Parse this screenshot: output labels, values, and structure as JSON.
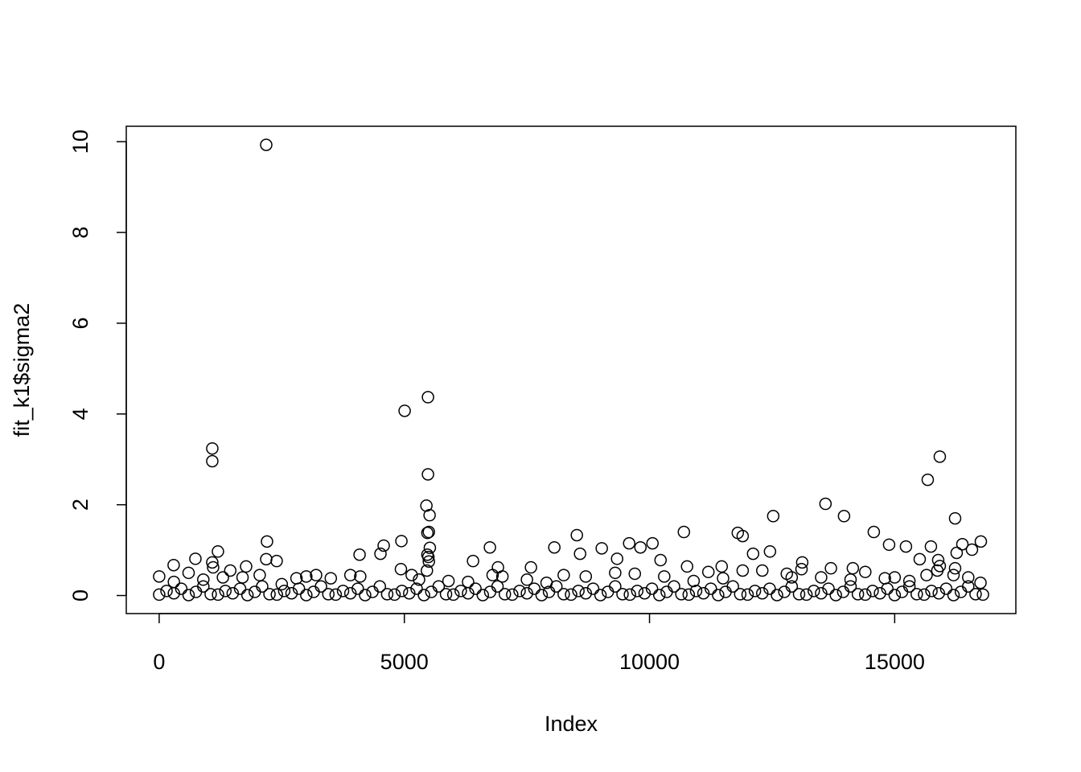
{
  "chart_data": {
    "type": "scatter",
    "xlabel": "Index",
    "ylabel": "fit_k1$sigma2",
    "xlim": [
      -671,
      17471
    ],
    "ylim": [
      -0.398,
      10.34
    ],
    "xticks": [
      0,
      5000,
      10000,
      15000
    ],
    "yticks": [
      0,
      2,
      4,
      6,
      8,
      10
    ],
    "grid": false,
    "color": "#000000",
    "x": [
      2183,
      1083,
      1083,
      5006,
      5482,
      5482,
      5450,
      5515,
      5500,
      5470,
      15920,
      15674,
      13589,
      13967,
      12523,
      16232,
      10701,
      11800,
      11900,
      14574,
      2199,
      4940,
      4579,
      8518,
      8059,
      9585,
      10061,
      9815,
      16757,
      16380,
      14886,
      15230,
      15739,
      1198,
      12457,
      12112,
      6745,
      9026,
      4087,
      4513,
      8584,
      9339,
      10225,
      739,
      2396,
      1083,
      6401,
      13114,
      15510,
      15887,
      16576,
      16264,
      295,
      1773,
      6909,
      7582,
      10766,
      11472,
      14147,
      5490,
      5470,
      5520,
      5500,
      5460,
      4930,
      2183,
      1100,
      16232,
      15920,
      0,
      600,
      1450,
      2050,
      2800,
      3000,
      3200,
      3500,
      3900,
      4100,
      5150,
      5300,
      5900,
      6300,
      6800,
      7000,
      7500,
      7900,
      8250,
      8700,
      9300,
      9700,
      10300,
      10900,
      11200,
      11500,
      11900,
      12300,
      12800,
      12900,
      13100,
      13500,
      13700,
      14100,
      14400,
      14800,
      15000,
      15300,
      15650,
      15870,
      16200,
      16500,
      16750,
      300,
      900,
      1300,
      1700,
      2500,
      0,
      150,
      300,
      450,
      600,
      750,
      900,
      1050,
      1200,
      1350,
      1500,
      1650,
      1800,
      1950,
      2100,
      2250,
      2400,
      2550,
      2700,
      2850,
      3000,
      3150,
      3300,
      3450,
      3600,
      3750,
      3900,
      4050,
      4200,
      4350,
      4500,
      4650,
      4800,
      4950,
      5100,
      5250,
      5400,
      5550,
      5700,
      5850,
      6000,
      6150,
      6300,
      6450,
      6600,
      6750,
      6900,
      7050,
      7200,
      7350,
      7500,
      7650,
      7800,
      7950,
      8100,
      8250,
      8400,
      8550,
      8700,
      8850,
      9000,
      9150,
      9300,
      9450,
      9600,
      9750,
      9900,
      10050,
      10200,
      10350,
      10500,
      10650,
      10800,
      10950,
      11100,
      11250,
      11400,
      11550,
      11700,
      11850,
      12000,
      12150,
      12300,
      12450,
      12600,
      12750,
      12900,
      13050,
      13200,
      13350,
      13500,
      13650,
      13800,
      13950,
      14100,
      14250,
      14400,
      14550,
      14700,
      14850,
      15000,
      15150,
      15300,
      15450,
      15600,
      15750,
      15900,
      16050,
      16200,
      16350,
      16500,
      16650,
      16800
    ],
    "values": [
      9.93,
      3.24,
      2.96,
      4.07,
      4.37,
      2.67,
      1.98,
      1.77,
      1.4,
      1.38,
      3.06,
      2.55,
      2.02,
      1.75,
      1.75,
      1.7,
      1.4,
      1.38,
      1.31,
      1.4,
      1.19,
      1.2,
      1.1,
      1.33,
      1.06,
      1.15,
      1.15,
      1.06,
      1.19,
      1.13,
      1.12,
      1.08,
      1.08,
      0.97,
      0.97,
      0.92,
      1.06,
      1.04,
      0.9,
      0.92,
      0.92,
      0.81,
      0.78,
      0.81,
      0.76,
      0.73,
      0.76,
      0.73,
      0.8,
      0.78,
      1.01,
      0.94,
      0.67,
      0.64,
      0.62,
      0.62,
      0.64,
      0.64,
      0.6,
      0.85,
      0.9,
      1.05,
      0.75,
      0.55,
      0.58,
      0.8,
      0.62,
      0.6,
      0.65,
      0.42,
      0.5,
      0.55,
      0.45,
      0.38,
      0.42,
      0.45,
      0.38,
      0.45,
      0.42,
      0.45,
      0.35,
      0.32,
      0.3,
      0.45,
      0.42,
      0.35,
      0.28,
      0.45,
      0.42,
      0.5,
      0.48,
      0.42,
      0.32,
      0.52,
      0.38,
      0.55,
      0.55,
      0.48,
      0.4,
      0.58,
      0.4,
      0.6,
      0.35,
      0.52,
      0.38,
      0.4,
      0.32,
      0.45,
      0.55,
      0.45,
      0.4,
      0.28,
      0.3,
      0.35,
      0.4,
      0.4,
      0.25,
      0.02,
      0.1,
      0.05,
      0.15,
      0.01,
      0.08,
      0.2,
      0.03,
      0.02,
      0.1,
      0.05,
      0.15,
      0.01,
      0.08,
      0.2,
      0.03,
      0.02,
      0.1,
      0.05,
      0.15,
      0.01,
      0.08,
      0.2,
      0.03,
      0.02,
      0.1,
      0.05,
      0.15,
      0.01,
      0.08,
      0.2,
      0.03,
      0.02,
      0.1,
      0.05,
      0.15,
      0.01,
      0.08,
      0.2,
      0.03,
      0.02,
      0.1,
      0.05,
      0.15,
      0.01,
      0.08,
      0.2,
      0.03,
      0.02,
      0.1,
      0.05,
      0.15,
      0.01,
      0.08,
      0.2,
      0.03,
      0.02,
      0.1,
      0.05,
      0.15,
      0.01,
      0.08,
      0.2,
      0.03,
      0.02,
      0.1,
      0.05,
      0.15,
      0.01,
      0.08,
      0.2,
      0.03,
      0.02,
      0.1,
      0.05,
      0.15,
      0.01,
      0.08,
      0.2,
      0.03,
      0.02,
      0.1,
      0.05,
      0.15,
      0.01,
      0.08,
      0.2,
      0.03,
      0.02,
      0.1,
      0.05,
      0.15,
      0.01,
      0.08,
      0.2,
      0.03,
      0.02,
      0.1,
      0.05,
      0.15,
      0.01,
      0.08,
      0.2,
      0.03,
      0.02,
      0.1,
      0.05,
      0.15,
      0.01,
      0.08,
      0.2,
      0.03,
      0.02
    ]
  }
}
